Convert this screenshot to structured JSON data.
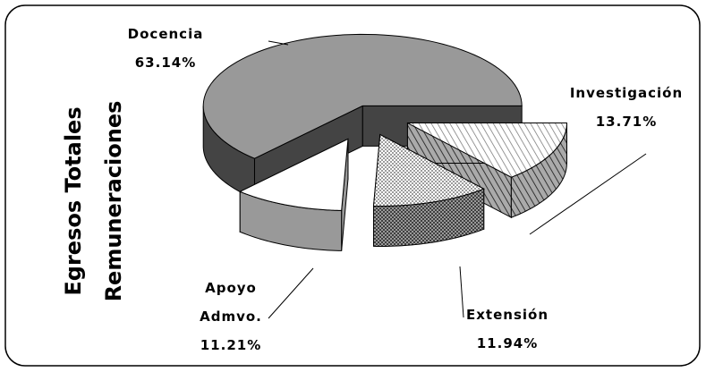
{
  "chart_data": {
    "type": "pie",
    "title": [
      "Egresos Totales",
      "Remuneraciones"
    ],
    "categories": [
      "Docencia",
      "Apoyo Admvo.",
      "Extensión",
      "Investigación"
    ],
    "values": [
      63.14,
      11.21,
      11.94,
      13.71
    ],
    "value_labels": [
      "63.14%",
      "11.21%",
      "11.94%",
      "13.71%"
    ],
    "colors": [
      "#999999",
      "#ffffff",
      "#d0d0d0",
      "#e4e4e4"
    ],
    "patterns": [
      "none",
      "none",
      "dots",
      "hatch"
    ],
    "exploded": true,
    "three_d": true
  }
}
